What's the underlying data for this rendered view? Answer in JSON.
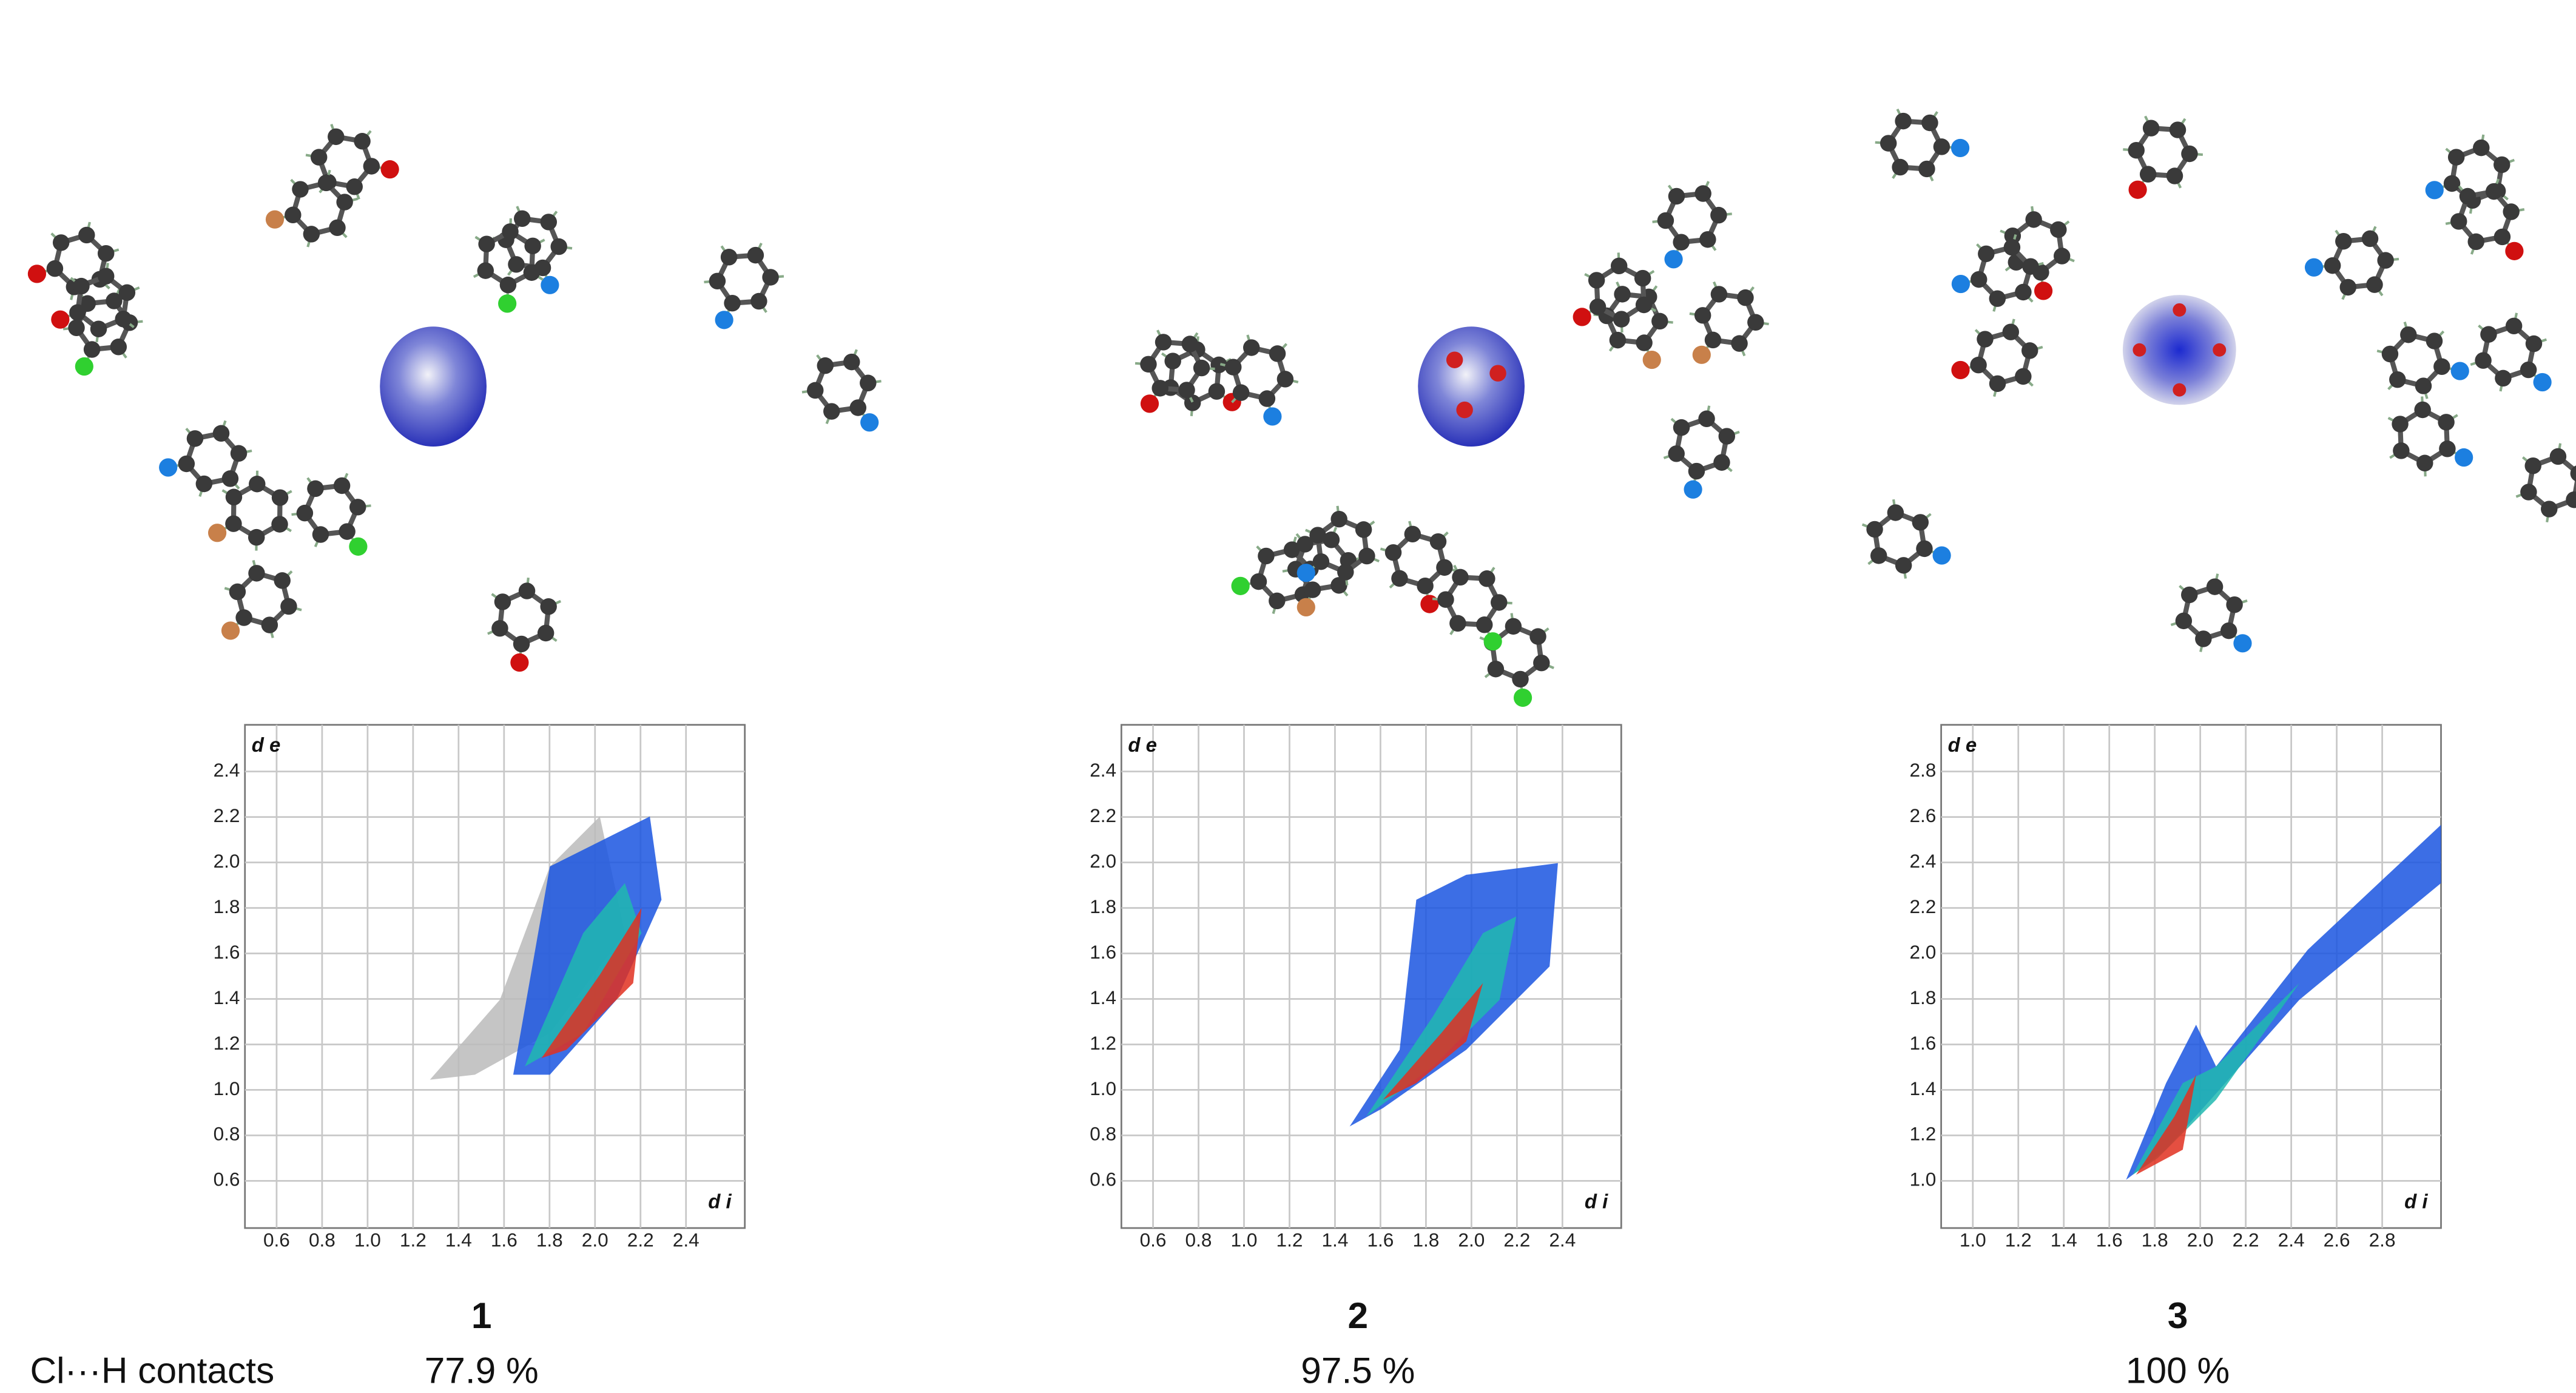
{
  "row_label": "Cl···H contacts",
  "panels": [
    {
      "label": "1",
      "percent": "77.9 %",
      "plot": {
        "y_axis": "d e",
        "x_axis": "d i",
        "yticks": [
          "2.4",
          "2.2",
          "2.0",
          "1.8",
          "1.6",
          "1.4",
          "1.2",
          "1.0",
          "0.8",
          "0.6"
        ],
        "xticks": [
          "0.6",
          "0.8",
          "1.0",
          "1.2",
          "1.4",
          "1.6",
          "1.8",
          "2.0",
          "2.2",
          "2.4"
        ]
      }
    },
    {
      "label": "2",
      "percent": "97.5 %",
      "plot": {
        "y_axis": "d e",
        "x_axis": "d i",
        "yticks": [
          "2.4",
          "2.2",
          "2.0",
          "1.8",
          "1.6",
          "1.4",
          "1.2",
          "1.0",
          "0.8",
          "0.6"
        ],
        "xticks": [
          "0.6",
          "0.8",
          "1.0",
          "1.2",
          "1.4",
          "1.6",
          "1.8",
          "2.0",
          "2.2",
          "2.4"
        ]
      }
    },
    {
      "label": "3",
      "percent": "100 %",
      "plot": {
        "y_axis": "d e",
        "x_axis": "d i",
        "yticks": [
          "2.8",
          "2.6",
          "2.4",
          "2.2",
          "2.0",
          "1.8",
          "1.6",
          "1.4",
          "1.2",
          "1.0"
        ],
        "xticks": [
          "1.0",
          "1.2",
          "1.4",
          "1.6",
          "1.8",
          "2.0",
          "2.2",
          "2.4",
          "2.6",
          "2.8"
        ]
      }
    }
  ]
}
